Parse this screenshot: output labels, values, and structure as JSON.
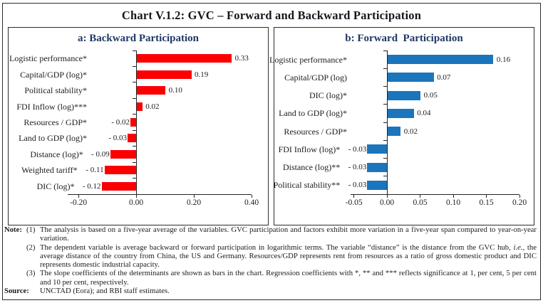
{
  "title": "Chart V.1.2: GVC – Forward and Backward Participation",
  "chart_data": [
    {
      "type": "bar",
      "orientation": "horizontal",
      "panel_title": "a: Backward Participation",
      "bar_color": "#fb0000",
      "categories": [
        "Logistic performance*",
        "Capital/GDP (log)*",
        "Political stability*",
        "FDI Inflow (log)***",
        "Resources / GDP*",
        "Land to GDP (log)*",
        "Distance (log)*",
        "Weighted tariff*",
        "DIC (log)*"
      ],
      "values": [
        0.33,
        0.19,
        0.1,
        0.02,
        -0.02,
        -0.03,
        -0.09,
        -0.11,
        -0.12
      ],
      "value_labels": [
        "0.33",
        "0.19",
        "0.10",
        "0.02",
        "- 0.02",
        "- 0.03",
        "- 0.09",
        "- 0.11",
        "- 0.12"
      ],
      "xlim": [
        -0.2375,
        0.4
      ],
      "x_ticks": [
        {
          "v": -0.2,
          "label": "-0.20"
        },
        {
          "v": 0.0,
          "label": "0.00"
        },
        {
          "v": 0.2,
          "label": "0.20"
        },
        {
          "v": 0.4,
          "label": "0.40"
        }
      ],
      "grid": "off",
      "legend": "none"
    },
    {
      "type": "bar",
      "orientation": "horizontal",
      "panel_title": "b: Forward  Participation",
      "bar_color": "#1b75bc",
      "categories": [
        "Logistic performance*",
        "Capital/GDP (log)",
        "DIC (log)*",
        "Land to GDP (log)*",
        "Resources / GDP*",
        "FDI Inflow (log)*",
        "Distance (log)**",
        "Political stability**"
      ],
      "values": [
        0.16,
        0.07,
        0.05,
        0.04,
        0.02,
        -0.03,
        -0.03,
        -0.03
      ],
      "value_labels": [
        "0.16",
        "0.07",
        "0.05",
        "0.04",
        "0.02",
        "- 0.03",
        "- 0.03",
        "- 0.03"
      ],
      "xlim": [
        -0.055,
        0.2
      ],
      "x_ticks": [
        {
          "v": -0.05,
          "label": "-0.05"
        },
        {
          "v": 0.0,
          "label": "0.00"
        },
        {
          "v": 0.05,
          "label": "0.05"
        },
        {
          "v": 0.1,
          "label": "0.10"
        },
        {
          "v": 0.15,
          "label": "0.15"
        },
        {
          "v": 0.2,
          "label": "0.20"
        }
      ],
      "grid": "off",
      "legend": "none"
    }
  ],
  "notes": {
    "note_label": "Note:",
    "items": [
      {
        "num": "(1)",
        "text": "The analysis is based on a five-year average of the variables. GVC participation and factors exhibit more variation in a five-year span compared to year-on-year variation."
      },
      {
        "num": "(2)",
        "text_a": "The dependent variable is average backward or forward participation in logarithmic terms. The variable “distance” is the distance from the GVC hub, ",
        "text_i": "i.e.,",
        "text_b": " the average distance of the country from China, the US and Germany. Resources/GDP represents rent from resources as a ratio of gross domestic product and DIC represents domestic industrial capacity."
      },
      {
        "num": "(3)",
        "text": "The slope coefficients of the determinants are shown as bars in the chart. Regression coefficients with *, ** and *** reflects significance at 1, per cent, 5 per cent and 10 per cent, respectively."
      }
    ],
    "source_label": "Source:",
    "source_text": "UNCTAD (Eora); and RBI staff estimates."
  }
}
